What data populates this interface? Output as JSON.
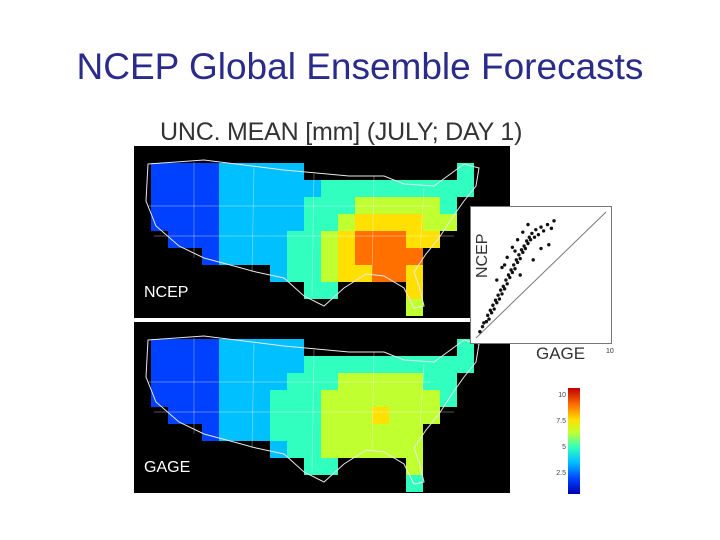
{
  "slide": {
    "title": "NCEP Global Ensemble Forecasts"
  },
  "figure": {
    "title": "UNC. MEAN [mm] (JULY; DAY 1)",
    "panels": [
      {
        "label": "NCEP"
      },
      {
        "label": "GAGE"
      }
    ]
  },
  "scatter": {
    "ylabel": "NCEP",
    "xlabel": "GAGE",
    "x_end_tick": "10",
    "x_range": [
      0,
      10
    ],
    "y_range": [
      0,
      10
    ],
    "one_to_one_line": true
  },
  "colorbar": {
    "ticks": [
      "10",
      "7.5",
      "5",
      "2.5"
    ],
    "colors": [
      "#0000b0",
      "#0040ff",
      "#00c0ff",
      "#30ffc0",
      "#c0ff30",
      "#ffe000",
      "#ff7000",
      "#c00000"
    ]
  },
  "chart_data": {
    "type": "scatter",
    "xlabel": "GAGE",
    "ylabel": "NCEP",
    "xlim": [
      0,
      10
    ],
    "ylim": [
      0,
      10
    ],
    "x": [
      0.3,
      0.5,
      0.6,
      0.8,
      0.9,
      1.0,
      1.1,
      1.2,
      1.3,
      1.4,
      1.5,
      1.6,
      1.7,
      1.8,
      1.9,
      2.0,
      2.1,
      2.2,
      2.3,
      2.4,
      2.5,
      2.6,
      2.7,
      2.8,
      2.9,
      3.0,
      3.1,
      3.2,
      3.3,
      3.4,
      3.5,
      3.6,
      3.7,
      3.8,
      3.9,
      4.0,
      4.1,
      4.2,
      4.3,
      4.5,
      4.6,
      4.8,
      5.0,
      5.2,
      5.5,
      5.8,
      6.0,
      2.0,
      2.4,
      2.8,
      3.2,
      3.6,
      4.0,
      1.6,
      2.2,
      3.0,
      3.4,
      4.4,
      5.0,
      5.6
    ],
    "y": [
      0.5,
      0.9,
      1.2,
      1.3,
      1.8,
      1.5,
      2.2,
      2.0,
      2.6,
      2.3,
      3.0,
      2.8,
      3.4,
      3.1,
      3.8,
      3.5,
      4.1,
      3.9,
      4.6,
      4.3,
      5.0,
      4.8,
      5.4,
      5.2,
      5.8,
      5.5,
      6.2,
      6.0,
      6.6,
      6.3,
      7.0,
      6.8,
      7.3,
      7.1,
      7.7,
      7.5,
      8.0,
      7.8,
      8.3,
      8.0,
      8.6,
      8.2,
      8.8,
      8.5,
      9.0,
      8.7,
      9.3,
      5.6,
      6.4,
      7.2,
      7.8,
      8.4,
      9.0,
      4.6,
      5.8,
      6.9,
      5.0,
      6.2,
      7.1,
      7.4
    ]
  }
}
